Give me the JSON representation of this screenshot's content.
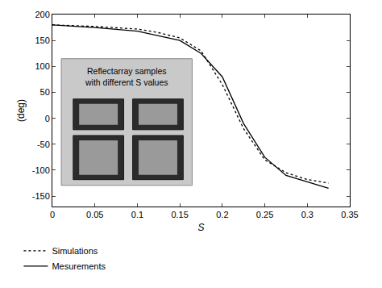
{
  "chart_data": {
    "type": "line",
    "x_label": "S",
    "y_label": "(deg)",
    "xlim": [
      0,
      0.35
    ],
    "xticks": [
      0,
      0.05,
      0.1,
      0.15,
      0.2,
      0.25,
      0.3,
      0.35
    ],
    "ylim": [
      -170,
      200
    ],
    "yticks": [
      -150,
      -100,
      -50,
      0,
      50,
      100,
      150,
      200
    ],
    "grid": false,
    "legend": "bottom left",
    "annotations": [
      {
        "text": [
          "Reflectarray samples",
          "with different S values"
        ]
      }
    ],
    "series": [
      {
        "name": "Simulations",
        "color": "#000000",
        "line_style": "dotted",
        "x": [
          0,
          0.05,
          0.1,
          0.125,
          0.15,
          0.175,
          0.2,
          0.225,
          0.25,
          0.275,
          0.3,
          0.325
        ],
        "values": [
          180,
          177,
          172,
          165,
          155,
          130,
          65,
          -20,
          -80,
          -105,
          -118,
          -125
        ]
      },
      {
        "name": "Mesurements",
        "color": "#000000",
        "line_style": "solid",
        "x": [
          0,
          0.05,
          0.1,
          0.15,
          0.175,
          0.2,
          0.225,
          0.25,
          0.275,
          0.3,
          0.325
        ],
        "values": [
          180,
          175,
          168,
          150,
          125,
          80,
          -10,
          -75,
          -110,
          -122,
          -135
        ]
      }
    ]
  }
}
